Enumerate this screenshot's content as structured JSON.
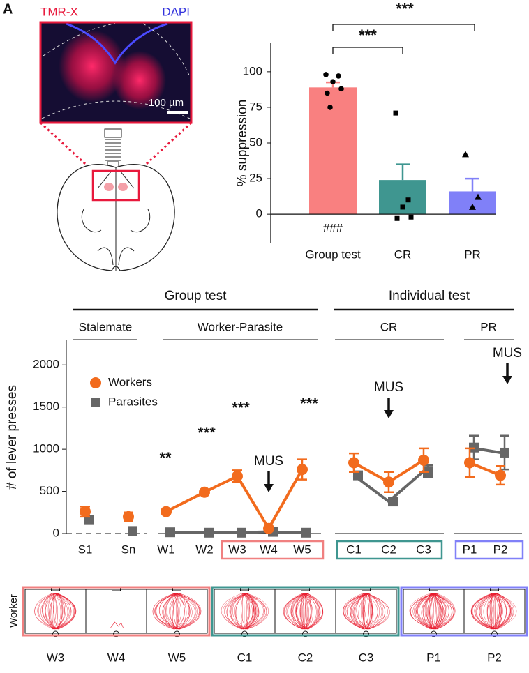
{
  "figure": {
    "panel_label": "A"
  },
  "image_panel": {
    "stain_1": "TMR-X",
    "stain_2": "DAPI",
    "scale_bar": "100 µm"
  },
  "chart_data": [
    {
      "type": "bar",
      "ylabel": "% suppression",
      "categories": [
        "Group test",
        "CR",
        "PR"
      ],
      "values": [
        89,
        24,
        16
      ],
      "errors": [
        3.5,
        11,
        9
      ],
      "colors": [
        "#f98080",
        "#3f9690",
        "#8080f8"
      ],
      "points": [
        [
          98,
          97,
          93,
          88,
          85,
          75
        ],
        [
          71,
          10,
          5,
          -2,
          -3
        ],
        [
          42,
          12,
          5
        ]
      ],
      "ylim": [
        -20,
        120
      ],
      "yticks": [
        0,
        25,
        50,
        75,
        100
      ],
      "annotations": [
        "***",
        "***",
        "###"
      ]
    },
    {
      "type": "line",
      "ylabel": "# of lever presses",
      "categories": [
        "S1",
        "Sn",
        "W1",
        "W2",
        "W3",
        "W4",
        "W5",
        "C1",
        "C2",
        "C3",
        "P1",
        "P2"
      ],
      "series": [
        {
          "name": "Workers",
          "color": "#f26b1d",
          "values": [
            260,
            200,
            260,
            490,
            680,
            60,
            760,
            840,
            610,
            870,
            840,
            690
          ],
          "errors": [
            60,
            50,
            20,
            30,
            70,
            20,
            120,
            110,
            120,
            140,
            170,
            110
          ]
        },
        {
          "name": "Parasites",
          "color": "#666666",
          "values": [
            160,
            30,
            15,
            10,
            10,
            20,
            10,
            690,
            380,
            740,
            1020,
            960
          ],
          "errors": [
            40,
            20,
            5,
            5,
            5,
            10,
            5,
            40,
            30,
            70,
            140,
            200
          ]
        }
      ],
      "ylim": [
        0,
        2300
      ],
      "yticks": [
        0,
        500,
        1000,
        1500,
        2000
      ],
      "group_labels": [
        "Group test",
        "Individual test"
      ],
      "subgroup_labels": [
        "Stalemate",
        "Worker-Parasite",
        "CR",
        "PR"
      ],
      "annotations": [
        "**",
        "***",
        "***",
        "***"
      ],
      "drug_labels": [
        "MUS",
        "MUS",
        "MUS"
      ],
      "legend": "upper left"
    }
  ],
  "trajectories": {
    "row_label": "Worker",
    "panels": [
      "W3",
      "W4",
      "W5",
      "C1",
      "C2",
      "C3",
      "P1",
      "P2"
    ]
  }
}
